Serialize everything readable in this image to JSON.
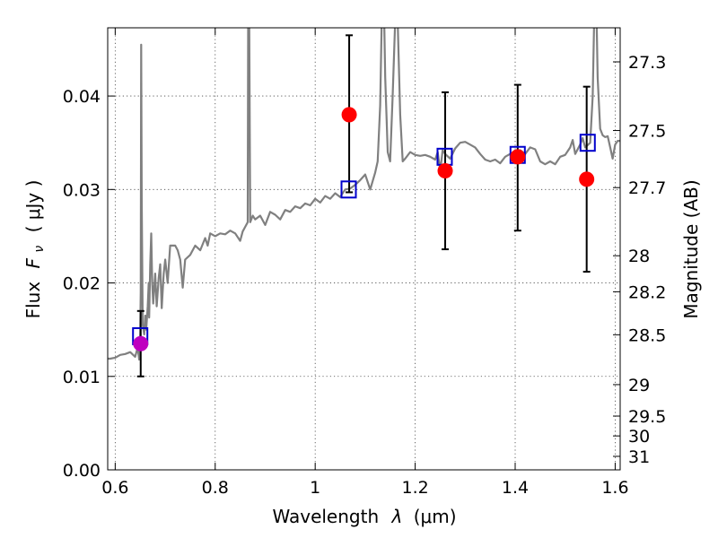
{
  "chart_data": {
    "type": "scatter",
    "xlabel": "Wavelength",
    "xlabel_symbol": "λ",
    "xlabel_unit": "(μm)",
    "ylabel": "Flux",
    "ylabel_symbol": "F",
    "ylabel_subscript": "ν",
    "ylabel_unit": "( μJy )",
    "y2label": "Magnitude (AB)",
    "xlim": [
      0.585,
      1.61
    ],
    "ylim": [
      0.0,
      0.0473
    ],
    "grid": true,
    "x_ticks": [
      {
        "value": 0.6,
        "label": "0.6"
      },
      {
        "value": 0.8,
        "label": "0.8"
      },
      {
        "value": 1.0,
        "label": "1"
      },
      {
        "value": 1.2,
        "label": "1.2"
      },
      {
        "value": 1.4,
        "label": "1.4"
      },
      {
        "value": 1.6,
        "label": "1.6"
      }
    ],
    "y_ticks": [
      {
        "value": 0.0,
        "label": "0.00"
      },
      {
        "value": 0.01,
        "label": "0.01"
      },
      {
        "value": 0.02,
        "label": "0.02"
      },
      {
        "value": 0.03,
        "label": "0.03"
      },
      {
        "value": 0.04,
        "label": "0.04"
      }
    ],
    "mag_ticks": [
      {
        "value": 27.3,
        "label": "27.3"
      },
      {
        "value": 27.5,
        "label": "27.5"
      },
      {
        "value": 27.7,
        "label": "27.7"
      },
      {
        "value": 28,
        "label": "28"
      },
      {
        "value": 28.2,
        "label": "28.2"
      },
      {
        "value": 28.5,
        "label": "28.5"
      },
      {
        "value": 29,
        "label": "29"
      },
      {
        "value": 29.5,
        "label": "29.5"
      },
      {
        "value": 30,
        "label": "30"
      },
      {
        "value": 31,
        "label": "31"
      }
    ],
    "series": [
      {
        "kind": "line",
        "color": "#808080",
        "points": [
          [
            0.585,
            0.0119
          ],
          [
            0.59,
            0.0119
          ],
          [
            0.6,
            0.012
          ],
          [
            0.61,
            0.0123
          ],
          [
            0.62,
            0.0124
          ],
          [
            0.63,
            0.0126
          ],
          [
            0.64,
            0.0121
          ],
          [
            0.645,
            0.0131
          ],
          [
            0.648,
            0.0118
          ],
          [
            0.65,
            0.0146
          ],
          [
            0.651,
            0.019
          ],
          [
            0.652,
            0.0455
          ],
          [
            0.653,
            0.029
          ],
          [
            0.655,
            0.0155
          ],
          [
            0.658,
            0.0145
          ],
          [
            0.66,
            0.0165
          ],
          [
            0.662,
            0.015
          ],
          [
            0.665,
            0.0175
          ],
          [
            0.667,
            0.02
          ],
          [
            0.668,
            0.0163
          ],
          [
            0.67,
            0.022
          ],
          [
            0.672,
            0.0253
          ],
          [
            0.674,
            0.02
          ],
          [
            0.676,
            0.0178
          ],
          [
            0.68,
            0.021
          ],
          [
            0.683,
            0.0175
          ],
          [
            0.687,
            0.0205
          ],
          [
            0.69,
            0.022
          ],
          [
            0.693,
            0.0173
          ],
          [
            0.697,
            0.021
          ],
          [
            0.7,
            0.0225
          ],
          [
            0.705,
            0.02
          ],
          [
            0.71,
            0.024
          ],
          [
            0.72,
            0.024
          ],
          [
            0.725,
            0.0235
          ],
          [
            0.73,
            0.0225
          ],
          [
            0.735,
            0.0195
          ],
          [
            0.74,
            0.0225
          ],
          [
            0.75,
            0.023
          ],
          [
            0.76,
            0.024
          ],
          [
            0.77,
            0.0235
          ],
          [
            0.78,
            0.0248
          ],
          [
            0.785,
            0.024
          ],
          [
            0.79,
            0.0253
          ],
          [
            0.8,
            0.025
          ],
          [
            0.81,
            0.0253
          ],
          [
            0.82,
            0.0252
          ],
          [
            0.83,
            0.0256
          ],
          [
            0.84,
            0.0253
          ],
          [
            0.85,
            0.0245
          ],
          [
            0.855,
            0.0255
          ],
          [
            0.86,
            0.026
          ],
          [
            0.865,
            0.0265
          ],
          [
            0.866,
            0.048
          ],
          [
            0.868,
            0.048
          ],
          [
            0.87,
            0.0265
          ],
          [
            0.875,
            0.0272
          ],
          [
            0.88,
            0.0268
          ],
          [
            0.89,
            0.0272
          ],
          [
            0.9,
            0.0262
          ],
          [
            0.91,
            0.0276
          ],
          [
            0.92,
            0.0273
          ],
          [
            0.93,
            0.0268
          ],
          [
            0.94,
            0.0278
          ],
          [
            0.95,
            0.0276
          ],
          [
            0.96,
            0.0282
          ],
          [
            0.97,
            0.028
          ],
          [
            0.98,
            0.0285
          ],
          [
            0.99,
            0.0283
          ],
          [
            1.0,
            0.029
          ],
          [
            1.01,
            0.0286
          ],
          [
            1.02,
            0.0293
          ],
          [
            1.03,
            0.029
          ],
          [
            1.04,
            0.0296
          ],
          [
            1.05,
            0.0292
          ],
          [
            1.06,
            0.03
          ],
          [
            1.07,
            0.0301
          ],
          [
            1.08,
            0.0305
          ],
          [
            1.09,
            0.031
          ],
          [
            1.1,
            0.0316
          ],
          [
            1.11,
            0.03
          ],
          [
            1.12,
            0.0318
          ],
          [
            1.125,
            0.033
          ],
          [
            1.13,
            0.039
          ],
          [
            1.133,
            0.048
          ],
          [
            1.138,
            0.048
          ],
          [
            1.14,
            0.042
          ],
          [
            1.145,
            0.034
          ],
          [
            1.15,
            0.033
          ],
          [
            1.155,
            0.04
          ],
          [
            1.16,
            0.048
          ],
          [
            1.165,
            0.048
          ],
          [
            1.17,
            0.038
          ],
          [
            1.175,
            0.033
          ],
          [
            1.18,
            0.0333
          ],
          [
            1.19,
            0.034
          ],
          [
            1.2,
            0.0337
          ],
          [
            1.21,
            0.0336
          ],
          [
            1.22,
            0.0337
          ],
          [
            1.23,
            0.0335
          ],
          [
            1.24,
            0.0332
          ],
          [
            1.245,
            0.034
          ],
          [
            1.25,
            0.032
          ],
          [
            1.255,
            0.0342
          ],
          [
            1.26,
            0.0338
          ],
          [
            1.27,
            0.0333
          ],
          [
            1.28,
            0.0344
          ],
          [
            1.29,
            0.035
          ],
          [
            1.3,
            0.0351
          ],
          [
            1.31,
            0.0348
          ],
          [
            1.32,
            0.0345
          ],
          [
            1.33,
            0.0338
          ],
          [
            1.34,
            0.0332
          ],
          [
            1.35,
            0.033
          ],
          [
            1.36,
            0.0332
          ],
          [
            1.37,
            0.0328
          ],
          [
            1.38,
            0.0335
          ],
          [
            1.39,
            0.0338
          ],
          [
            1.4,
            0.034
          ],
          [
            1.41,
            0.0342
          ],
          [
            1.42,
            0.0338
          ],
          [
            1.43,
            0.0345
          ],
          [
            1.44,
            0.0343
          ],
          [
            1.45,
            0.033
          ],
          [
            1.46,
            0.0327
          ],
          [
            1.47,
            0.033
          ],
          [
            1.48,
            0.0327
          ],
          [
            1.49,
            0.0335
          ],
          [
            1.5,
            0.0337
          ],
          [
            1.51,
            0.0345
          ],
          [
            1.515,
            0.0353
          ],
          [
            1.52,
            0.0338
          ],
          [
            1.53,
            0.0348
          ],
          [
            1.535,
            0.0355
          ],
          [
            1.54,
            0.0345
          ],
          [
            1.55,
            0.035
          ],
          [
            1.555,
            0.04
          ],
          [
            1.558,
            0.048
          ],
          [
            1.563,
            0.048
          ],
          [
            1.565,
            0.042
          ],
          [
            1.57,
            0.0365
          ],
          [
            1.575,
            0.0358
          ],
          [
            1.58,
            0.0356
          ],
          [
            1.585,
            0.0357
          ],
          [
            1.59,
            0.0345
          ],
          [
            1.595,
            0.0333
          ],
          [
            1.6,
            0.0348
          ],
          [
            1.605,
            0.0352
          ],
          [
            1.61,
            0.0352
          ]
        ]
      },
      {
        "kind": "model-points",
        "marker": "open-square",
        "color": "#0000cc",
        "points": [
          [
            0.65,
            0.0143
          ],
          [
            1.067,
            0.03
          ],
          [
            1.259,
            0.0335
          ],
          [
            1.405,
            0.0337
          ],
          [
            1.545,
            0.035
          ]
        ]
      },
      {
        "kind": "observed-points",
        "marker": "filled-circle",
        "color": "#ff0000",
        "points": [
          {
            "x": 1.068,
            "y": 0.038,
            "err_low": 0.0297,
            "err_high": 0.0465
          },
          {
            "x": 1.26,
            "y": 0.032,
            "err_low": 0.0236,
            "err_high": 0.0404
          },
          {
            "x": 1.405,
            "y": 0.0335,
            "err_low": 0.0256,
            "err_high": 0.0412
          },
          {
            "x": 1.543,
            "y": 0.0311,
            "err_low": 0.0212,
            "err_high": 0.041
          }
        ]
      },
      {
        "kind": "observed-points",
        "marker": "filled-circle",
        "color": "#bf00bf",
        "points": [
          {
            "x": 0.651,
            "y": 0.0135,
            "err_low": 0.01,
            "err_high": 0.017
          }
        ]
      }
    ]
  }
}
